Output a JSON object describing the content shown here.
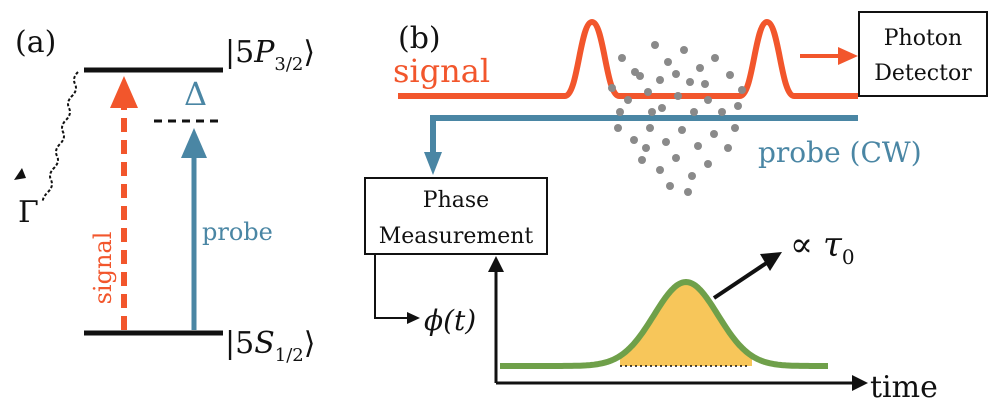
{
  "panel_a": {
    "label": "(a)",
    "upper_level": {
      "prefix": "|5",
      "letter": "P",
      "sub": "3/2",
      "suffix": "⟩"
    },
    "lower_level": {
      "prefix": "|5",
      "letter": "S",
      "sub": "1/2",
      "suffix": "⟩"
    },
    "detuning_symbol": "Δ",
    "decay_symbol": "Γ",
    "signal_label": "signal",
    "probe_label": "probe"
  },
  "panel_b": {
    "label": "(b)",
    "signal_label": "signal",
    "probe_label": "probe (CW)",
    "detector_line1": "Photon",
    "detector_line2": "Detector",
    "phase_line1": "Phase",
    "phase_line2": "Measurement",
    "phi_label": "ϕ(t)",
    "tau_prop": "∝",
    "tau_symbol": "τ",
    "tau_sub": "0",
    "time_label": "time"
  },
  "colors": {
    "signal": "#f2562c",
    "probe": "#4a86a4",
    "pulse_line": "#6fa04a",
    "pulse_fill": "#f7c65a",
    "atoms": "#8a8a8a",
    "black": "#111111"
  }
}
